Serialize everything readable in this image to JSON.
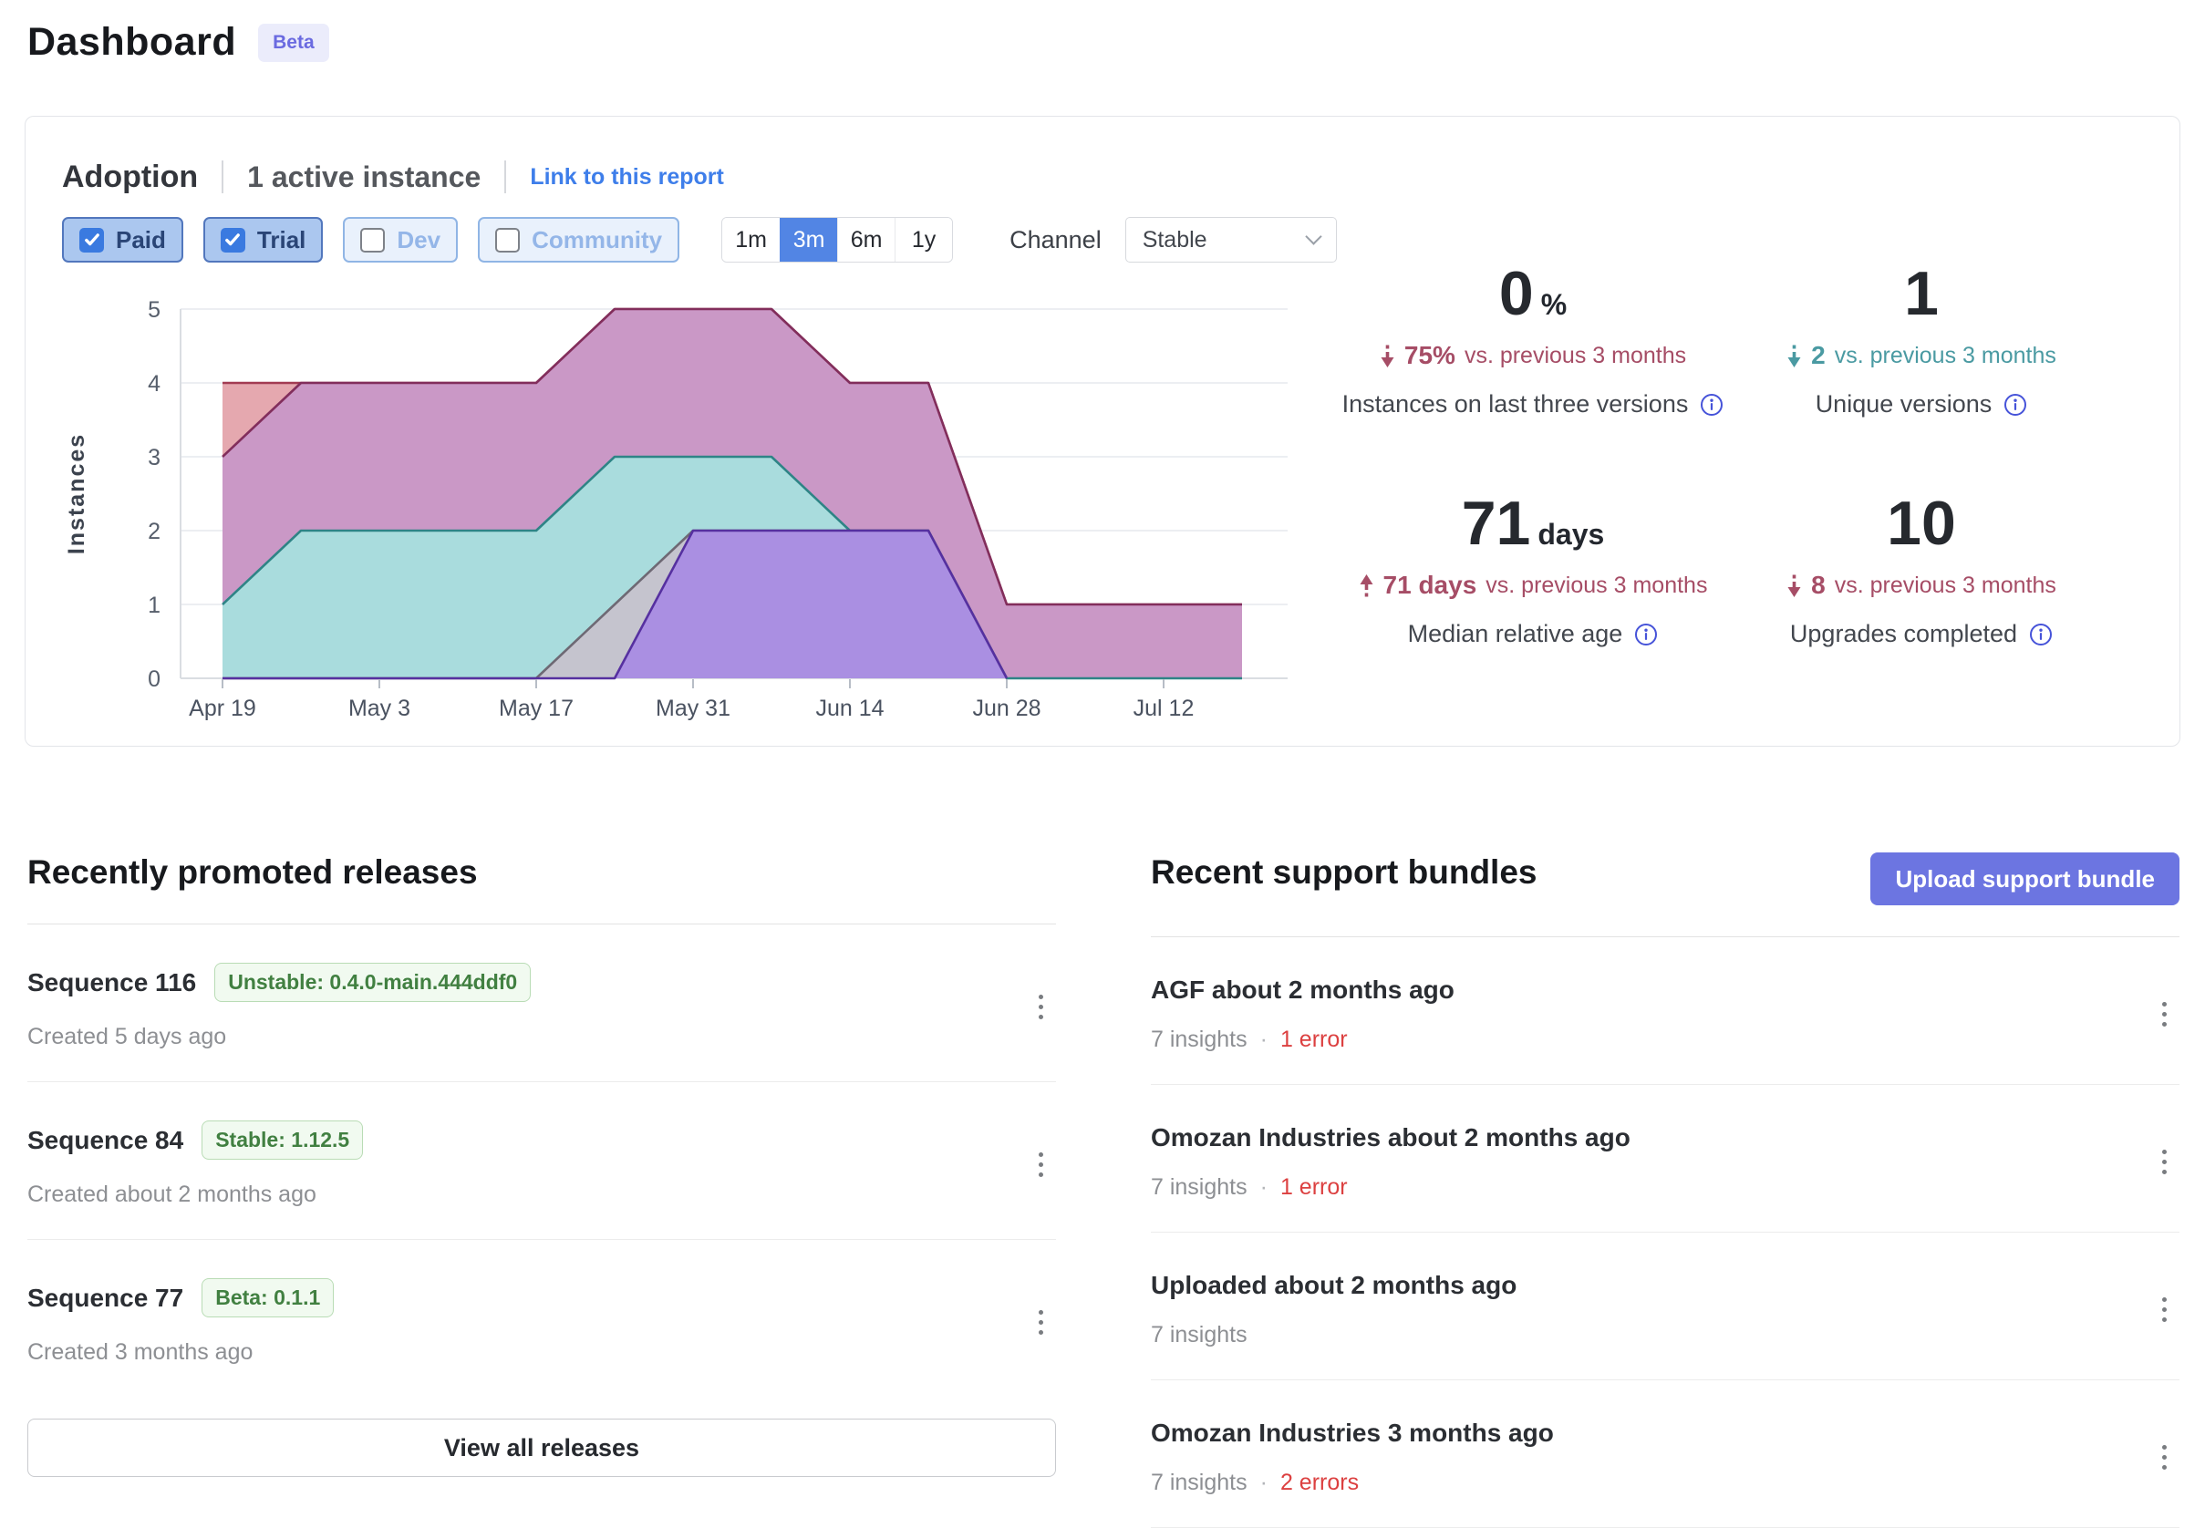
{
  "page": {
    "title": "Dashboard",
    "beta": "Beta"
  },
  "colors": {
    "accent_indigo": "#6c75e1",
    "link_blue": "#3e7eea",
    "selected_blue": "#5285e4",
    "checked_filter_blue": "#abc7ef",
    "error_red": "#dc4040",
    "success_green": "#418041",
    "stat_down_red": "#a64d66",
    "stat_teal": "#4a9aa2",
    "info_icon_blue": "#4653d9"
  },
  "adoption": {
    "title": "Adoption",
    "active_instances": "1 active instance",
    "link_label": "Link to this report",
    "filters": [
      {
        "label": "Paid",
        "checked": true
      },
      {
        "label": "Trial",
        "checked": true
      },
      {
        "label": "Dev",
        "checked": false
      },
      {
        "label": "Community",
        "checked": false
      }
    ],
    "ranges": [
      {
        "label": "1m",
        "selected": false
      },
      {
        "label": "3m",
        "selected": true
      },
      {
        "label": "6m",
        "selected": false
      },
      {
        "label": "1y",
        "selected": false
      }
    ],
    "channel_label": "Channel",
    "channel_value": "Stable",
    "stats": [
      {
        "value": "0",
        "suffix": "%",
        "label": "Instances on last three versions",
        "change": {
          "direction": "down",
          "value": "75%",
          "text": "vs. previous 3 months",
          "color": "#a64d66"
        }
      },
      {
        "value": "1",
        "suffix": "",
        "label": "Unique versions",
        "change": {
          "direction": "down",
          "value": "2",
          "text": "vs. previous 3 months",
          "color": "#4a9aa2"
        }
      },
      {
        "value": "71",
        "suffix": "days",
        "label": "Median relative age",
        "change": {
          "direction": "up",
          "value": "71 days",
          "text": "vs. previous 3 months",
          "color": "#a64d66"
        }
      },
      {
        "value": "10",
        "suffix": "",
        "label": "Upgrades completed",
        "change": {
          "direction": "down",
          "value": "8",
          "text": "vs. previous 3 months",
          "color": "#a64d66"
        }
      }
    ]
  },
  "chart_data": {
    "type": "area",
    "title": "",
    "xlabel": "",
    "ylabel": "Instances",
    "ylim": [
      0,
      5
    ],
    "y_ticks": [
      0,
      1,
      2,
      3,
      4,
      5
    ],
    "grid": true,
    "legend": false,
    "x_unit": "weeks starting Apr 19",
    "x_tick_labels": [
      "Apr 19",
      "May 3",
      "May 17",
      "May 31",
      "Jun 14",
      "Jun 28",
      "Jul 12"
    ],
    "x_tick_indices": [
      0,
      2,
      4,
      6,
      8,
      10,
      12
    ],
    "series": [
      {
        "name": "salmon-area",
        "fill": "#e4a3ab",
        "stroke": "#a23b52",
        "x": [
          0,
          1,
          2,
          3,
          4,
          5,
          6,
          7,
          8,
          9,
          10,
          11,
          12,
          13
        ],
        "values": [
          4,
          4,
          4,
          4,
          4,
          5,
          5,
          5,
          4,
          4,
          1,
          1,
          1,
          1
        ]
      },
      {
        "name": "magenta-area",
        "fill": "#c897c7",
        "stroke": "#822e5c",
        "x": [
          0,
          1,
          2,
          3,
          4,
          5,
          6,
          7,
          8,
          9,
          10,
          11,
          12,
          13
        ],
        "values": [
          3,
          4,
          4,
          4,
          4,
          5,
          5,
          5,
          4,
          4,
          1,
          1,
          1,
          1
        ]
      },
      {
        "name": "teal-area",
        "fill": "#a7dfde",
        "stroke": "#2e8486",
        "x": [
          0,
          1,
          2,
          3,
          4,
          5,
          6,
          7,
          8,
          9,
          10,
          11,
          12,
          13
        ],
        "values": [
          1,
          2,
          2,
          2,
          2,
          3,
          3,
          3,
          2,
          2,
          0,
          0,
          0,
          0
        ]
      },
      {
        "name": "gray-area",
        "fill": "#c6c2cc",
        "stroke": "#6e6974",
        "x": [
          0,
          1,
          2,
          3,
          4,
          5,
          6,
          7,
          8,
          9,
          10
        ],
        "values": [
          0,
          0,
          0,
          0,
          0,
          1,
          2,
          2,
          2,
          2,
          0
        ]
      },
      {
        "name": "purple-area",
        "fill": "#a98ce3",
        "stroke": "#5630a0",
        "x": [
          0,
          1,
          2,
          3,
          4,
          5,
          6,
          7,
          8,
          9,
          10
        ],
        "values": [
          0,
          0,
          0,
          0,
          0,
          0,
          2,
          2,
          2,
          2,
          0
        ]
      }
    ]
  },
  "releases": {
    "heading": "Recently promoted releases",
    "view_all_label": "View all releases",
    "items": [
      {
        "title": "Sequence 116",
        "badge": "Unstable: 0.4.0-main.444ddf0",
        "created": "Created 5 days ago"
      },
      {
        "title": "Sequence 84",
        "badge": "Stable: 1.12.5",
        "created": "Created about 2 months ago"
      },
      {
        "title": "Sequence 77",
        "badge": "Beta: 0.1.1",
        "created": "Created 3 months ago"
      }
    ]
  },
  "bundles": {
    "heading": "Recent support bundles",
    "upload_label": "Upload support bundle",
    "items": [
      {
        "title": "AGF about 2 months ago",
        "insights": "7 insights",
        "errors": "1 error"
      },
      {
        "title": "Omozan Industries about 2 months ago",
        "insights": "7 insights",
        "errors": "1 error"
      },
      {
        "title": "Uploaded about 2 months ago",
        "insights": "7 insights",
        "errors": ""
      },
      {
        "title": "Omozan Industries 3 months ago",
        "insights": "7 insights",
        "errors": "2 errors"
      }
    ]
  }
}
